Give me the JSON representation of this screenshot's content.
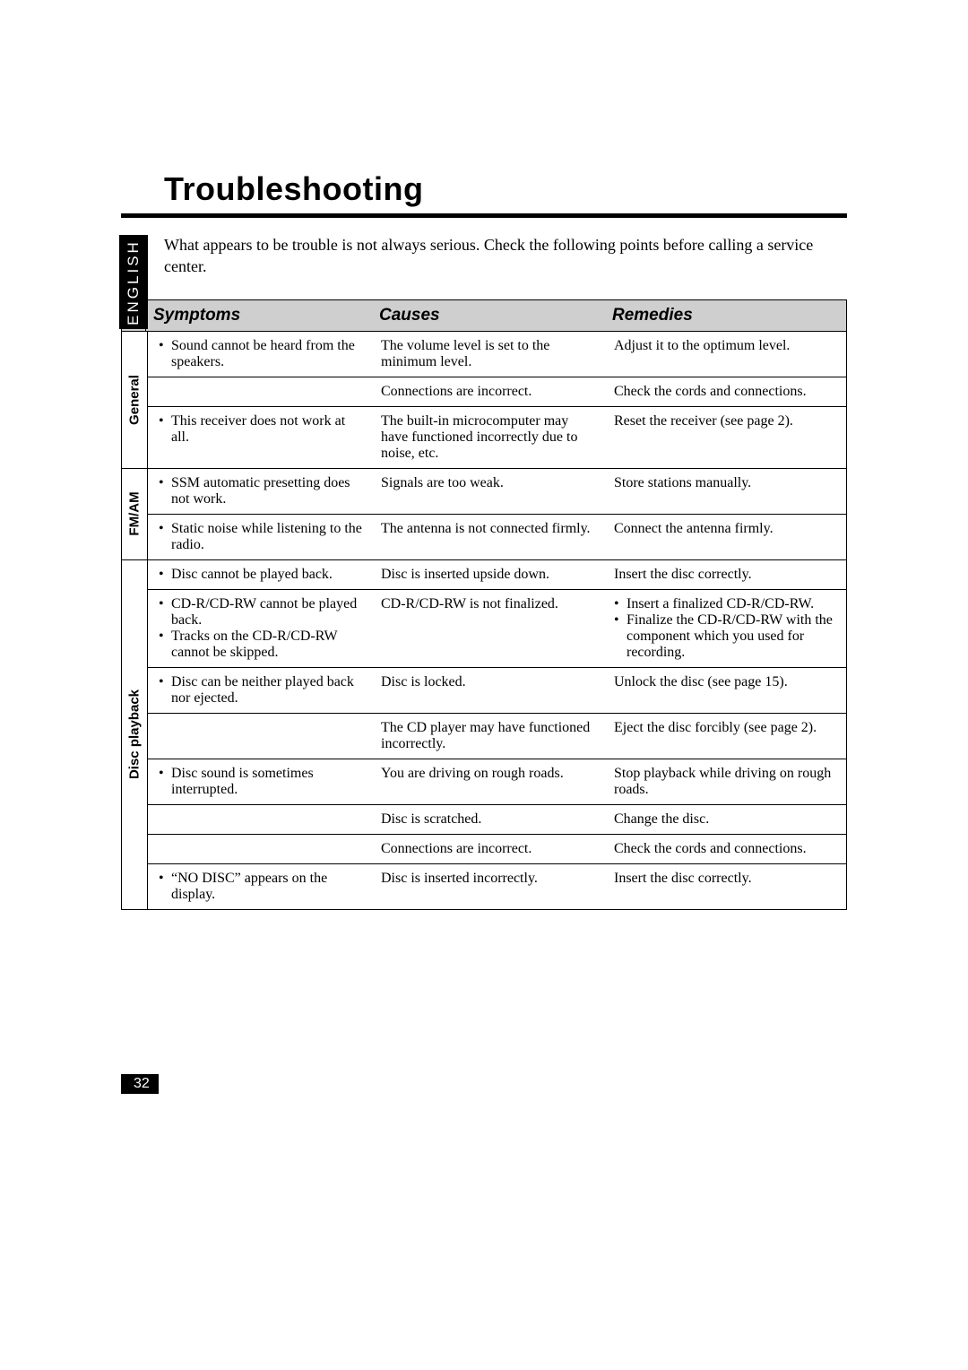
{
  "title": "Troubleshooting",
  "intro": "What appears to be trouble is not always serious. Check the following points before calling a service center.",
  "language_tab": "ENGLISH",
  "page_number": "32",
  "headers": {
    "symptoms": "Symptoms",
    "causes": "Causes",
    "remedies": "Remedies"
  },
  "sections": [
    {
      "category": "General",
      "rows": [
        {
          "symptom_bullets": [
            "Sound cannot be heard from the speakers."
          ],
          "cause": "The volume level is set to the minimum level.",
          "remedy": "Adjust it to the optimum level."
        },
        {
          "symptom_bullets": [],
          "cause": "Connections are incorrect.",
          "remedy": "Check the cords and connections."
        },
        {
          "symptom_bullets": [
            "This receiver does not work at all."
          ],
          "cause": "The built-in microcomputer may have functioned incorrectly due to noise, etc.",
          "remedy": "Reset the receiver (see page 2)."
        }
      ]
    },
    {
      "category": "FM/AM",
      "rows": [
        {
          "symptom_bullets": [
            "SSM automatic presetting does not work."
          ],
          "cause": "Signals are too weak.",
          "remedy": "Store stations manually."
        },
        {
          "symptom_bullets": [
            "Static noise while listening to the radio."
          ],
          "cause": "The antenna is not connected firmly.",
          "remedy": "Connect the antenna firmly."
        }
      ]
    },
    {
      "category": "Disc playback",
      "rows": [
        {
          "symptom_bullets": [
            "Disc cannot be played back."
          ],
          "cause": "Disc is inserted upside down.",
          "remedy": "Insert the disc correctly."
        },
        {
          "symptom_bullets": [
            "CD-R/CD-RW cannot be played back.",
            "Tracks on the CD-R/CD-RW cannot be skipped."
          ],
          "cause": "CD-R/CD-RW is not finalized.",
          "remedy_bullets": [
            "Insert a finalized CD-R/CD-RW.",
            "Finalize the CD-R/CD-RW with the component which you used for recording."
          ]
        },
        {
          "symptom_bullets": [
            "Disc can be neither played back nor ejected."
          ],
          "cause": "Disc is locked.",
          "remedy": "Unlock the disc (see page 15)."
        },
        {
          "symptom_bullets": [],
          "cause": "The CD player may have functioned incorrectly.",
          "remedy": "Eject the disc forcibly (see page 2)."
        },
        {
          "symptom_bullets": [
            "Disc sound is sometimes interrupted."
          ],
          "cause": "You are driving on rough roads.",
          "remedy": "Stop playback while driving on rough roads."
        },
        {
          "symptom_bullets": [],
          "cause": "Disc is scratched.",
          "remedy": "Change the disc."
        },
        {
          "symptom_bullets": [],
          "cause": "Connections are incorrect.",
          "remedy": "Check the cords and connections."
        },
        {
          "symptom_bullets": [
            "“NO DISC” appears on the display."
          ],
          "cause": "Disc is inserted incorrectly.",
          "remedy": "Insert the disc correctly."
        }
      ]
    }
  ]
}
